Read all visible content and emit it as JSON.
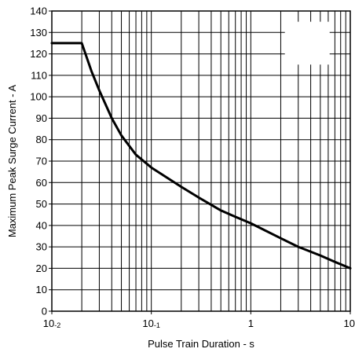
{
  "chart_data": {
    "type": "line",
    "title": "",
    "xlabel": "Pulse Train Duration - s",
    "ylabel": "Maximum Peak Surge Current - A",
    "x_scale": "log",
    "xlim": [
      0.01,
      10
    ],
    "ylim": [
      0,
      140
    ],
    "grid": true,
    "x_ticks": [
      {
        "value": 0.01,
        "base": "10",
        "exp": "-2"
      },
      {
        "value": 0.1,
        "base": "10",
        "exp": "-1"
      },
      {
        "value": 1,
        "base": "1",
        "exp": ""
      },
      {
        "value": 10,
        "base": "10",
        "exp": ""
      }
    ],
    "y_ticks": [
      0,
      10,
      20,
      30,
      40,
      50,
      60,
      70,
      80,
      90,
      100,
      110,
      120,
      130,
      140
    ],
    "series": [
      {
        "name": "",
        "x": [
          0.01,
          0.02,
          0.025,
          0.03,
          0.04,
          0.05,
          0.07,
          0.1,
          0.2,
          0.3,
          0.5,
          0.7,
          1,
          2,
          3,
          5,
          7,
          10
        ],
        "y": [
          125,
          125,
          112,
          103,
          90,
          82,
          73,
          67,
          58,
          53,
          47,
          44,
          41,
          34,
          30,
          26,
          23,
          20
        ]
      }
    ],
    "colors": {
      "line": "#000000",
      "grid": "#000000",
      "background": "#ffffff"
    }
  }
}
